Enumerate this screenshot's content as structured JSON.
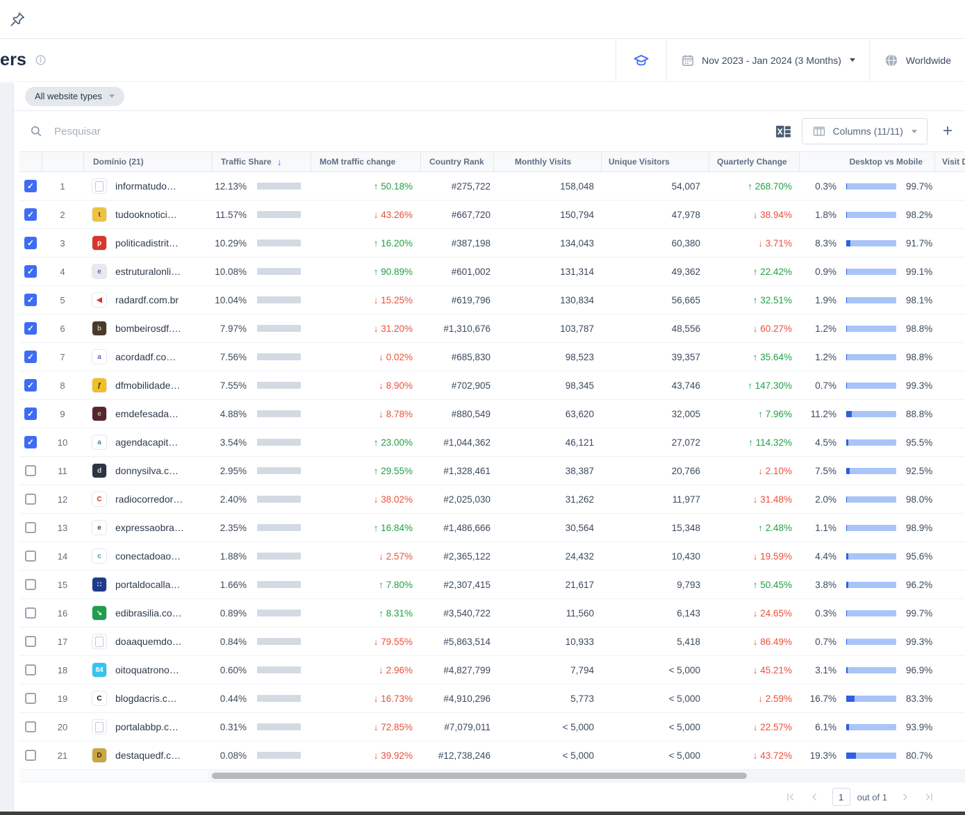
{
  "header": {
    "title": "ers",
    "date_range": "Nov 2023 - Jan 2024 (3 Months)",
    "region": "Worldwide"
  },
  "filters": {
    "website_type_chip": "All website types"
  },
  "toolbar": {
    "search_placeholder": "Pesquisar",
    "columns_label": "Columns (11/11)",
    "add_label": "+"
  },
  "table": {
    "columns": {
      "domain": "Domínio (21)",
      "traffic_share": "Traffic Share",
      "mom": "MoM traffic change",
      "country_rank": "Country Rank",
      "monthly_visits": "Monthly Visits",
      "unique_visitors": "Unique Visitors",
      "quarterly_change": "Quarterly Change",
      "desktop_vs_mobile": "Desktop vs Mobile",
      "visit_duration": "Visit D"
    },
    "sorted_column": "traffic_share",
    "rows": [
      {
        "rank": 1,
        "checked": true,
        "domain": "informatudo…",
        "fav": {
          "doc": true
        },
        "traffic_share": "12.13%",
        "traffic_share_pct": 12.13,
        "mom_change": "50.18%",
        "mom_dir": "up",
        "country_rank": "#275,722",
        "monthly_visits": "158,048",
        "unique_visitors": "54,007",
        "quarterly_change": "268.70%",
        "quarterly_dir": "up",
        "desktop": "0.3%",
        "desktop_pct": 0.3,
        "mobile": "99.7%"
      },
      {
        "rank": 2,
        "checked": true,
        "domain": "tudooknotici…",
        "fav": {
          "bg": "#eec33f",
          "fg": "#7a3a20",
          "char": "t"
        },
        "traffic_share": "11.57%",
        "traffic_share_pct": 11.57,
        "mom_change": "43.26%",
        "mom_dir": "down",
        "country_rank": "#667,720",
        "monthly_visits": "150,794",
        "unique_visitors": "47,978",
        "quarterly_change": "38.94%",
        "quarterly_dir": "down",
        "desktop": "1.8%",
        "desktop_pct": 1.8,
        "mobile": "98.2%"
      },
      {
        "rank": 3,
        "checked": true,
        "domain": "politicadistrit…",
        "fav": {
          "bg": "#d8372a",
          "fg": "#ffffff",
          "char": "p"
        },
        "traffic_share": "10.29%",
        "traffic_share_pct": 10.29,
        "mom_change": "16.20%",
        "mom_dir": "up",
        "country_rank": "#387,198",
        "monthly_visits": "134,043",
        "unique_visitors": "60,380",
        "quarterly_change": "3.71%",
        "quarterly_dir": "down",
        "desktop": "8.3%",
        "desktop_pct": 8.3,
        "mobile": "91.7%"
      },
      {
        "rank": 4,
        "checked": true,
        "domain": "estruturalonli…",
        "fav": {
          "bg": "#e8e9ee",
          "fg": "#5a6b9e",
          "char": "e"
        },
        "traffic_share": "10.08%",
        "traffic_share_pct": 10.08,
        "mom_change": "90.89%",
        "mom_dir": "up",
        "country_rank": "#601,002",
        "monthly_visits": "131,314",
        "unique_visitors": "49,362",
        "quarterly_change": "22.42%",
        "quarterly_dir": "up",
        "desktop": "0.9%",
        "desktop_pct": 0.9,
        "mobile": "99.1%"
      },
      {
        "rank": 5,
        "checked": true,
        "domain": "radardf.com.br",
        "fav": {
          "bg": "#ffffff",
          "fg": "#e03325",
          "char": "◀"
        },
        "traffic_share": "10.04%",
        "traffic_share_pct": 10.04,
        "mom_change": "15.25%",
        "mom_dir": "down",
        "country_rank": "#619,796",
        "monthly_visits": "130,834",
        "unique_visitors": "56,665",
        "quarterly_change": "32.51%",
        "quarterly_dir": "up",
        "desktop": "1.9%",
        "desktop_pct": 1.9,
        "mobile": "98.1%"
      },
      {
        "rank": 6,
        "checked": true,
        "domain": "bombeirosdf.…",
        "fav": {
          "bg": "#4a3a2c",
          "fg": "#cbb9a4",
          "char": "b"
        },
        "traffic_share": "7.97%",
        "traffic_share_pct": 7.97,
        "mom_change": "31.20%",
        "mom_dir": "down",
        "country_rank": "#1,310,676",
        "monthly_visits": "103,787",
        "unique_visitors": "48,556",
        "quarterly_change": "60.27%",
        "quarterly_dir": "down",
        "desktop": "1.2%",
        "desktop_pct": 1.2,
        "mobile": "98.8%"
      },
      {
        "rank": 7,
        "checked": true,
        "domain": "acordadf.co…",
        "fav": {
          "bg": "#ffffff",
          "fg": "#6a5acd",
          "char": "a"
        },
        "traffic_share": "7.56%",
        "traffic_share_pct": 7.56,
        "mom_change": "0.02%",
        "mom_dir": "down",
        "country_rank": "#685,830",
        "monthly_visits": "98,523",
        "unique_visitors": "39,357",
        "quarterly_change": "35.64%",
        "quarterly_dir": "up",
        "desktop": "1.2%",
        "desktop_pct": 1.2,
        "mobile": "98.8%"
      },
      {
        "rank": 8,
        "checked": true,
        "domain": "dfmobilidade…",
        "fav": {
          "bg": "#f2c021",
          "fg": "#22303e",
          "char": "ƒ"
        },
        "traffic_share": "7.55%",
        "traffic_share_pct": 7.55,
        "mom_change": "8.90%",
        "mom_dir": "down",
        "country_rank": "#702,905",
        "monthly_visits": "98,345",
        "unique_visitors": "43,746",
        "quarterly_change": "147.30%",
        "quarterly_dir": "up",
        "desktop": "0.7%",
        "desktop_pct": 0.7,
        "mobile": "99.3%"
      },
      {
        "rank": 9,
        "checked": true,
        "domain": "emdefesada…",
        "fav": {
          "bg": "#58242e",
          "fg": "#a9bf92",
          "char": "e"
        },
        "traffic_share": "4.88%",
        "traffic_share_pct": 4.88,
        "mom_change": "8.78%",
        "mom_dir": "down",
        "country_rank": "#880,549",
        "monthly_visits": "63,620",
        "unique_visitors": "32,005",
        "quarterly_change": "7.96%",
        "quarterly_dir": "up",
        "desktop": "11.2%",
        "desktop_pct": 11.2,
        "mobile": "88.8%"
      },
      {
        "rank": 10,
        "checked": true,
        "domain": "agendacapit…",
        "fav": {
          "bg": "#ffffff",
          "fg": "#2e8fa3",
          "char": "a"
        },
        "traffic_share": "3.54%",
        "traffic_share_pct": 3.54,
        "mom_change": "23.00%",
        "mom_dir": "up",
        "country_rank": "#1,044,362",
        "monthly_visits": "46,121",
        "unique_visitors": "27,072",
        "quarterly_change": "114.32%",
        "quarterly_dir": "up",
        "desktop": "4.5%",
        "desktop_pct": 4.5,
        "mobile": "95.5%"
      },
      {
        "rank": 11,
        "checked": false,
        "domain": "donnysilva.c…",
        "fav": {
          "bg": "#2e3440",
          "fg": "#d8dde5",
          "char": "d"
        },
        "traffic_share": "2.95%",
        "traffic_share_pct": 2.95,
        "mom_change": "29.55%",
        "mom_dir": "up",
        "country_rank": "#1,328,461",
        "monthly_visits": "38,387",
        "unique_visitors": "20,766",
        "quarterly_change": "2.10%",
        "quarterly_dir": "down",
        "desktop": "7.5%",
        "desktop_pct": 7.5,
        "mobile": "92.5%"
      },
      {
        "rank": 12,
        "checked": false,
        "domain": "radiocorredor…",
        "fav": {
          "bg": "#ffffff",
          "fg": "#c23b2e",
          "char": "C"
        },
        "traffic_share": "2.40%",
        "traffic_share_pct": 2.4,
        "mom_change": "38.02%",
        "mom_dir": "down",
        "country_rank": "#2,025,030",
        "monthly_visits": "31,262",
        "unique_visitors": "11,977",
        "quarterly_change": "31.48%",
        "quarterly_dir": "down",
        "desktop": "2.0%",
        "desktop_pct": 2.0,
        "mobile": "98.0%"
      },
      {
        "rank": 13,
        "checked": false,
        "domain": "expressaobra…",
        "fav": {
          "bg": "#ffffff",
          "fg": "#3a4a5e",
          "char": "e"
        },
        "traffic_share": "2.35%",
        "traffic_share_pct": 2.35,
        "mom_change": "16.84%",
        "mom_dir": "up",
        "country_rank": "#1,486,666",
        "monthly_visits": "30,564",
        "unique_visitors": "15,348",
        "quarterly_change": "2.48%",
        "quarterly_dir": "up",
        "desktop": "1.1%",
        "desktop_pct": 1.1,
        "mobile": "98.9%"
      },
      {
        "rank": 14,
        "checked": false,
        "domain": "conectadoao…",
        "fav": {
          "bg": "#ffffff",
          "fg": "#2aa8a0",
          "char": "c"
        },
        "traffic_share": "1.88%",
        "traffic_share_pct": 1.88,
        "mom_change": "2.57%",
        "mom_dir": "down",
        "country_rank": "#2,365,122",
        "monthly_visits": "24,432",
        "unique_visitors": "10,430",
        "quarterly_change": "19.59%",
        "quarterly_dir": "down",
        "desktop": "4.4%",
        "desktop_pct": 4.4,
        "mobile": "95.6%"
      },
      {
        "rank": 15,
        "checked": false,
        "domain": "portaldocalla…",
        "fav": {
          "bg": "#1f3a8a",
          "fg": "#ffffff",
          "char": "∷"
        },
        "traffic_share": "1.66%",
        "traffic_share_pct": 1.66,
        "mom_change": "7.80%",
        "mom_dir": "up",
        "country_rank": "#2,307,415",
        "monthly_visits": "21,617",
        "unique_visitors": "9,793",
        "quarterly_change": "50.45%",
        "quarterly_dir": "up",
        "desktop": "3.8%",
        "desktop_pct": 3.8,
        "mobile": "96.2%"
      },
      {
        "rank": 16,
        "checked": false,
        "domain": "edibrasilia.co…",
        "fav": {
          "bg": "#1e9e4a",
          "fg": "#ffffff",
          "char": "↘"
        },
        "traffic_share": "0.89%",
        "traffic_share_pct": 0.89,
        "mom_change": "8.31%",
        "mom_dir": "up",
        "country_rank": "#3,540,722",
        "monthly_visits": "11,560",
        "unique_visitors": "6,143",
        "quarterly_change": "24.65%",
        "quarterly_dir": "down",
        "desktop": "0.3%",
        "desktop_pct": 0.3,
        "mobile": "99.7%"
      },
      {
        "rank": 17,
        "checked": false,
        "domain": "doaaquemdo…",
        "fav": {
          "doc": true
        },
        "traffic_share": "0.84%",
        "traffic_share_pct": 0.84,
        "mom_change": "79.55%",
        "mom_dir": "down",
        "country_rank": "#5,863,514",
        "monthly_visits": "10,933",
        "unique_visitors": "5,418",
        "quarterly_change": "86.49%",
        "quarterly_dir": "down",
        "desktop": "0.7%",
        "desktop_pct": 0.7,
        "mobile": "99.3%"
      },
      {
        "rank": 18,
        "checked": false,
        "domain": "oitoquatrono…",
        "fav": {
          "bg": "#35c3ef",
          "fg": "#ffffff",
          "char": "84"
        },
        "traffic_share": "0.60%",
        "traffic_share_pct": 0.6,
        "mom_change": "2.96%",
        "mom_dir": "down",
        "country_rank": "#4,827,799",
        "monthly_visits": "7,794",
        "unique_visitors": "< 5,000",
        "quarterly_change": "45.21%",
        "quarterly_dir": "down",
        "desktop": "3.1%",
        "desktop_pct": 3.1,
        "mobile": "96.9%"
      },
      {
        "rank": 19,
        "checked": false,
        "domain": "blogdacris.c…",
        "fav": {
          "bg": "#ffffff",
          "fg": "#111111",
          "char": "C"
        },
        "traffic_share": "0.44%",
        "traffic_share_pct": 0.44,
        "mom_change": "16.73%",
        "mom_dir": "down",
        "country_rank": "#4,910,296",
        "monthly_visits": "5,773",
        "unique_visitors": "< 5,000",
        "quarterly_change": "2.59%",
        "quarterly_dir": "down",
        "desktop": "16.7%",
        "desktop_pct": 16.7,
        "mobile": "83.3%"
      },
      {
        "rank": 20,
        "checked": false,
        "domain": "portalabbp.c…",
        "fav": {
          "doc": true
        },
        "traffic_share": "0.31%",
        "traffic_share_pct": 0.31,
        "mom_change": "72.85%",
        "mom_dir": "down",
        "country_rank": "#7,079,011",
        "monthly_visits": "< 5,000",
        "unique_visitors": "< 5,000",
        "quarterly_change": "22.57%",
        "quarterly_dir": "down",
        "desktop": "6.1%",
        "desktop_pct": 6.1,
        "mobile": "93.9%"
      },
      {
        "rank": 21,
        "checked": false,
        "domain": "destaquedf.c…",
        "fav": {
          "bg": "#caa83e",
          "fg": "#3a2c18",
          "char": "D"
        },
        "traffic_share": "0.08%",
        "traffic_share_pct": 0.08,
        "mom_change": "39.92%",
        "mom_dir": "down",
        "country_rank": "#12,738,246",
        "monthly_visits": "< 5,000",
        "unique_visitors": "< 5,000",
        "quarterly_change": "43.72%",
        "quarterly_dir": "down",
        "desktop": "19.3%",
        "desktop_pct": 19.3,
        "mobile": "80.7%"
      }
    ]
  },
  "pagination": {
    "current_page": "1",
    "total_label": "out of 1"
  },
  "colors": {
    "accent_blue": "#3e6cf4",
    "positive_green": "#1fa144",
    "negative_red": "#ea4f3c",
    "bar_gray": "#d4dae3",
    "dvm_desktop": "#2f5fe0",
    "dvm_mobile": "#a8c4f9"
  }
}
